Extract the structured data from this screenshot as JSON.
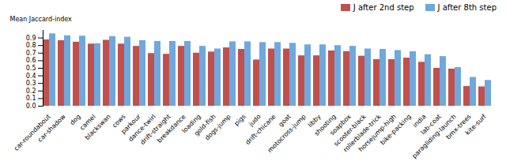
{
  "chart_data": {
    "type": "bar",
    "categories": [
      "car-roundabout",
      "car-shadow",
      "dog",
      "camel",
      "blackswan",
      "cows",
      "parkour",
      "dance-twirl",
      "drift-straight",
      "breakdance",
      "loading",
      "gold-fish",
      "dogs-jump",
      "pigs",
      "judo",
      "drift-chicane",
      "goat",
      "motocross-jump",
      "libby",
      "shooting",
      "soapbox",
      "scooter-black",
      "rollerblade-trick",
      "horsejump-high",
      "bike-packing",
      "india",
      "lab-coat",
      "paragliding-launch",
      "bmx-trees",
      "kite-surf"
    ],
    "series": [
      {
        "name": "J after 2nd step",
        "color": "#c0504d",
        "values": [
          0.875,
          0.865,
          0.845,
          0.82,
          0.87,
          0.82,
          0.79,
          0.695,
          0.685,
          0.79,
          0.7,
          0.715,
          0.77,
          0.75,
          0.61,
          0.755,
          0.755,
          0.665,
          0.665,
          0.73,
          0.72,
          0.66,
          0.615,
          0.615,
          0.635,
          0.58,
          0.5,
          0.49,
          0.26,
          0.255
        ]
      },
      {
        "name": "J after 8th step",
        "color": "#6fa8dc",
        "values": [
          0.955,
          0.93,
          0.925,
          0.825,
          0.92,
          0.91,
          0.865,
          0.855,
          0.855,
          0.855,
          0.79,
          0.755,
          0.85,
          0.85,
          0.84,
          0.84,
          0.83,
          0.81,
          0.81,
          0.8,
          0.79,
          0.755,
          0.75,
          0.735,
          0.72,
          0.68,
          0.655,
          0.51,
          0.38,
          0.34
        ]
      }
    ],
    "ylabel": "Mean Jaccard-index",
    "ylim": [
      0.0,
      1.0
    ],
    "yticks": [
      {
        "value": 0.0,
        "label": "0.0"
      },
      0.1,
      0.2,
      0.3,
      0.4,
      0.5,
      0.6,
      0.7,
      0.8,
      0.9
    ],
    "grid": false,
    "legend": "upper right"
  }
}
